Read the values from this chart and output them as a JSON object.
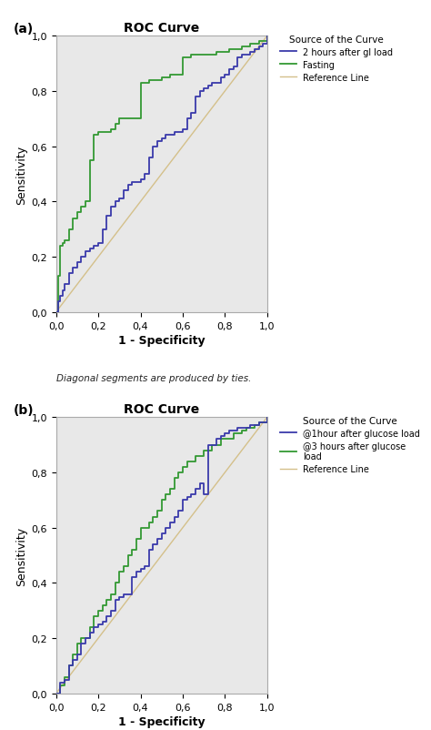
{
  "title": "ROC Curve",
  "xlabel": "1 - Specificity",
  "ylabel": "Sensitivity",
  "footnote": "Diagonal segments are produced by ties.",
  "bg_color": "#e8e8e8",
  "fig_bg": "#ffffff",
  "panel_a": {
    "label": "(a)",
    "legend_title": "Source of the Curve",
    "ref_line": {
      "color": "#d4c08a",
      "label": "Reference Line"
    },
    "curve1": {
      "label": "2 hours after gl load",
      "color": "#3a3aaa",
      "x": [
        0.0,
        0.01,
        0.02,
        0.03,
        0.04,
        0.06,
        0.08,
        0.1,
        0.12,
        0.14,
        0.16,
        0.18,
        0.2,
        0.22,
        0.24,
        0.26,
        0.28,
        0.3,
        0.32,
        0.34,
        0.36,
        0.38,
        0.4,
        0.42,
        0.44,
        0.46,
        0.48,
        0.5,
        0.52,
        0.54,
        0.56,
        0.58,
        0.6,
        0.62,
        0.64,
        0.66,
        0.68,
        0.7,
        0.72,
        0.74,
        0.76,
        0.78,
        0.8,
        0.82,
        0.84,
        0.86,
        0.88,
        0.9,
        0.92,
        0.94,
        0.96,
        0.98,
        1.0
      ],
      "y": [
        0.0,
        0.04,
        0.06,
        0.08,
        0.1,
        0.14,
        0.16,
        0.18,
        0.2,
        0.22,
        0.23,
        0.24,
        0.25,
        0.3,
        0.35,
        0.38,
        0.4,
        0.41,
        0.44,
        0.46,
        0.47,
        0.47,
        0.48,
        0.5,
        0.56,
        0.6,
        0.62,
        0.63,
        0.64,
        0.64,
        0.65,
        0.65,
        0.66,
        0.7,
        0.72,
        0.78,
        0.8,
        0.81,
        0.82,
        0.83,
        0.83,
        0.85,
        0.86,
        0.88,
        0.89,
        0.92,
        0.93,
        0.93,
        0.94,
        0.95,
        0.96,
        0.97,
        1.0
      ]
    },
    "curve2": {
      "label": "Fasting",
      "color": "#339933",
      "x": [
        0.0,
        0.01,
        0.02,
        0.03,
        0.04,
        0.06,
        0.08,
        0.1,
        0.12,
        0.14,
        0.16,
        0.18,
        0.2,
        0.22,
        0.24,
        0.26,
        0.28,
        0.3,
        0.32,
        0.34,
        0.36,
        0.4,
        0.44,
        0.5,
        0.54,
        0.6,
        0.64,
        0.7,
        0.76,
        0.82,
        0.88,
        0.92,
        0.96,
        1.0
      ],
      "y": [
        0.0,
        0.13,
        0.24,
        0.25,
        0.26,
        0.3,
        0.34,
        0.36,
        0.38,
        0.4,
        0.55,
        0.64,
        0.65,
        0.65,
        0.65,
        0.66,
        0.68,
        0.7,
        0.7,
        0.7,
        0.7,
        0.83,
        0.84,
        0.85,
        0.86,
        0.92,
        0.93,
        0.93,
        0.94,
        0.95,
        0.96,
        0.97,
        0.98,
        1.0
      ]
    }
  },
  "panel_b": {
    "label": "(b)",
    "legend_title": "Source of the Curve",
    "ref_line": {
      "color": "#d4c08a",
      "label": "Reference Line"
    },
    "curve1": {
      "label": "@1hour after glucose load",
      "color": "#3a3aaa",
      "x": [
        0.0,
        0.02,
        0.04,
        0.06,
        0.08,
        0.1,
        0.12,
        0.14,
        0.16,
        0.18,
        0.2,
        0.22,
        0.24,
        0.26,
        0.28,
        0.3,
        0.32,
        0.34,
        0.36,
        0.38,
        0.4,
        0.42,
        0.44,
        0.46,
        0.48,
        0.5,
        0.52,
        0.54,
        0.56,
        0.58,
        0.6,
        0.62,
        0.64,
        0.66,
        0.68,
        0.7,
        0.72,
        0.74,
        0.76,
        0.78,
        0.8,
        0.82,
        0.84,
        0.86,
        0.88,
        0.9,
        0.92,
        0.94,
        0.96,
        0.98,
        1.0
      ],
      "y": [
        0.0,
        0.04,
        0.05,
        0.1,
        0.12,
        0.14,
        0.18,
        0.2,
        0.22,
        0.24,
        0.25,
        0.26,
        0.28,
        0.3,
        0.34,
        0.35,
        0.36,
        0.36,
        0.42,
        0.44,
        0.45,
        0.46,
        0.52,
        0.54,
        0.56,
        0.58,
        0.6,
        0.62,
        0.64,
        0.66,
        0.7,
        0.71,
        0.72,
        0.74,
        0.76,
        0.72,
        0.9,
        0.9,
        0.92,
        0.93,
        0.94,
        0.95,
        0.95,
        0.96,
        0.96,
        0.96,
        0.97,
        0.97,
        0.98,
        0.98,
        1.0
      ]
    },
    "curve2": {
      "label": "@3 hours after glucose\nload",
      "color": "#339933",
      "x": [
        0.0,
        0.02,
        0.04,
        0.06,
        0.08,
        0.1,
        0.12,
        0.14,
        0.16,
        0.18,
        0.2,
        0.22,
        0.24,
        0.26,
        0.28,
        0.3,
        0.32,
        0.34,
        0.36,
        0.38,
        0.4,
        0.42,
        0.44,
        0.46,
        0.48,
        0.5,
        0.52,
        0.54,
        0.56,
        0.58,
        0.6,
        0.62,
        0.64,
        0.66,
        0.68,
        0.7,
        0.72,
        0.74,
        0.76,
        0.78,
        0.8,
        0.82,
        0.84,
        0.86,
        0.88,
        0.9,
        0.92,
        0.94,
        0.96,
        0.98,
        1.0
      ],
      "y": [
        0.0,
        0.03,
        0.06,
        0.1,
        0.14,
        0.18,
        0.2,
        0.2,
        0.24,
        0.28,
        0.3,
        0.32,
        0.34,
        0.36,
        0.4,
        0.44,
        0.46,
        0.5,
        0.52,
        0.56,
        0.6,
        0.6,
        0.62,
        0.64,
        0.66,
        0.7,
        0.72,
        0.74,
        0.78,
        0.8,
        0.82,
        0.84,
        0.84,
        0.86,
        0.86,
        0.88,
        0.88,
        0.9,
        0.9,
        0.92,
        0.92,
        0.92,
        0.94,
        0.94,
        0.95,
        0.96,
        0.96,
        0.97,
        0.98,
        0.98,
        1.0
      ]
    }
  },
  "tick_labels": [
    "0,0",
    "0,2",
    "0,4",
    "0,6",
    "0,8",
    "1,0"
  ],
  "tick_vals": [
    0.0,
    0.2,
    0.4,
    0.6,
    0.8,
    1.0
  ]
}
